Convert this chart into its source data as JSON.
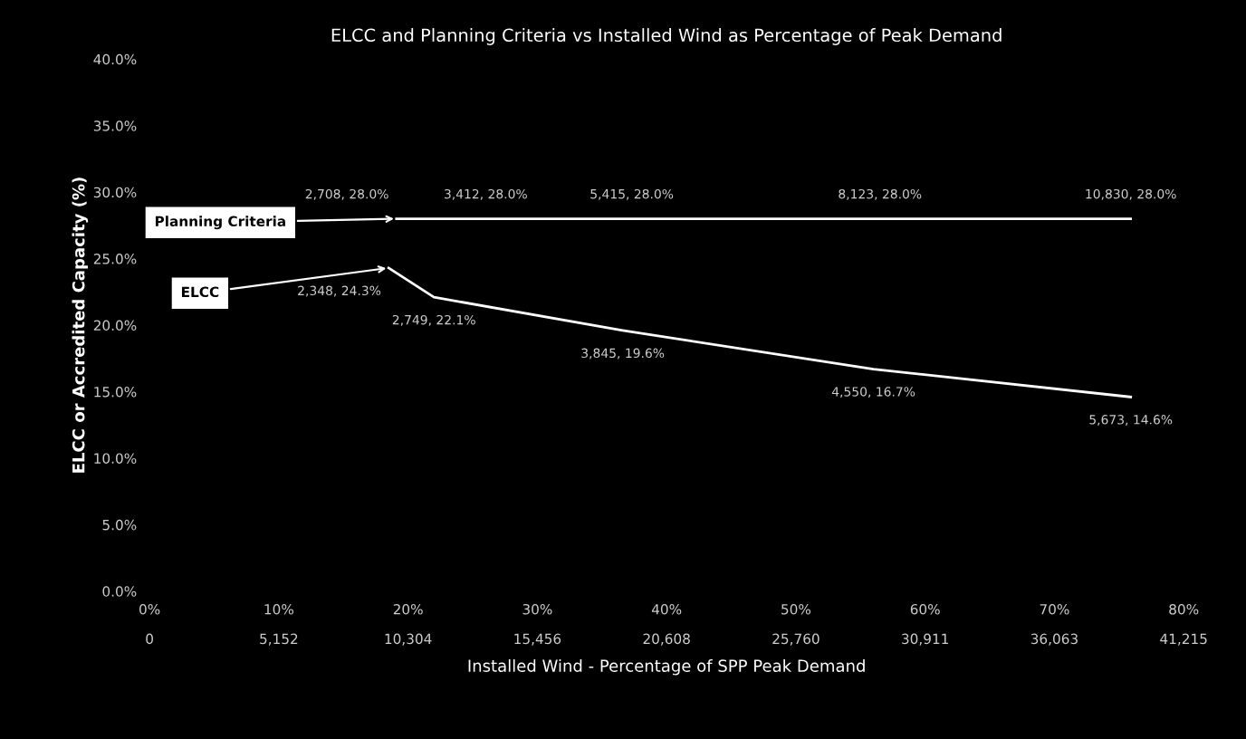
{
  "chart_data": {
    "type": "line",
    "title": "ELCC and Planning Criteria vs Installed Wind as Percentage of Peak Demand",
    "xlabel": "Installed Wind - Percentage of SPP Peak Demand",
    "ylabel": "ELCC or Accredited Capacity (%)",
    "series": [
      {
        "name": "Planning Criteria",
        "color": "#ffffff",
        "x": [
          19.1,
          26,
          37.3,
          56.5,
          75.9
        ],
        "values": [
          28.0,
          28.0,
          28.0,
          28.0,
          28.0
        ],
        "value_labels": [
          "2,708, 28.0%",
          "3,412, 28.0%",
          "5,415, 28.0%",
          "8,123, 28.0%",
          "10,830, 28.0%"
        ]
      },
      {
        "name": "ELCC",
        "color": "#ffffff",
        "x": [
          18.5,
          22,
          36.6,
          56,
          75.9
        ],
        "values": [
          24.3,
          22.1,
          19.6,
          16.7,
          14.6
        ],
        "value_labels": [
          "2,348, 24.3%",
          "2,749, 22.1%",
          "3,845, 19.6%",
          "4,550, 16.7%",
          "5,673, 14.6%"
        ]
      }
    ],
    "xlim": [
      0,
      80
    ],
    "xticks": [
      {
        "value": 0,
        "label": "0%"
      },
      {
        "value": 10,
        "label": "10%"
      },
      {
        "value": 20,
        "label": "20%"
      },
      {
        "value": 30,
        "label": "30%"
      },
      {
        "value": 40,
        "label": "40%"
      },
      {
        "value": 50,
        "label": "50%"
      },
      {
        "value": 60,
        "label": "60%"
      },
      {
        "value": 70,
        "label": "70%"
      },
      {
        "value": 80,
        "label": "80%"
      }
    ],
    "x2lim": [
      0,
      41215
    ],
    "x2ticks": [
      {
        "value": 0,
        "label": "0"
      },
      {
        "value": 5152,
        "label": "5,152"
      },
      {
        "value": 10304,
        "label": "10,304"
      },
      {
        "value": 15456,
        "label": "15,456"
      },
      {
        "value": 20608,
        "label": "20,608"
      },
      {
        "value": 25760,
        "label": "25,760"
      },
      {
        "value": 30911,
        "label": "30,911"
      },
      {
        "value": 36063,
        "label": "36,063"
      },
      {
        "value": 41215,
        "label": "41,215"
      }
    ],
    "ylim": [
      0,
      40
    ],
    "yticks": [
      {
        "value": 0,
        "label": "0.0%"
      },
      {
        "value": 5,
        "label": "5.0%"
      },
      {
        "value": 10,
        "label": "10.0%"
      },
      {
        "value": 15,
        "label": "15.0%"
      },
      {
        "value": 20,
        "label": "20.0%"
      },
      {
        "value": 25,
        "label": "25.0%"
      },
      {
        "value": 30,
        "label": "30.0%"
      },
      {
        "value": 35,
        "label": "35.0%"
      },
      {
        "value": 40,
        "label": "40.0%"
      }
    ],
    "grid": false,
    "legend": false,
    "marker": "none",
    "line_style": "solid"
  }
}
